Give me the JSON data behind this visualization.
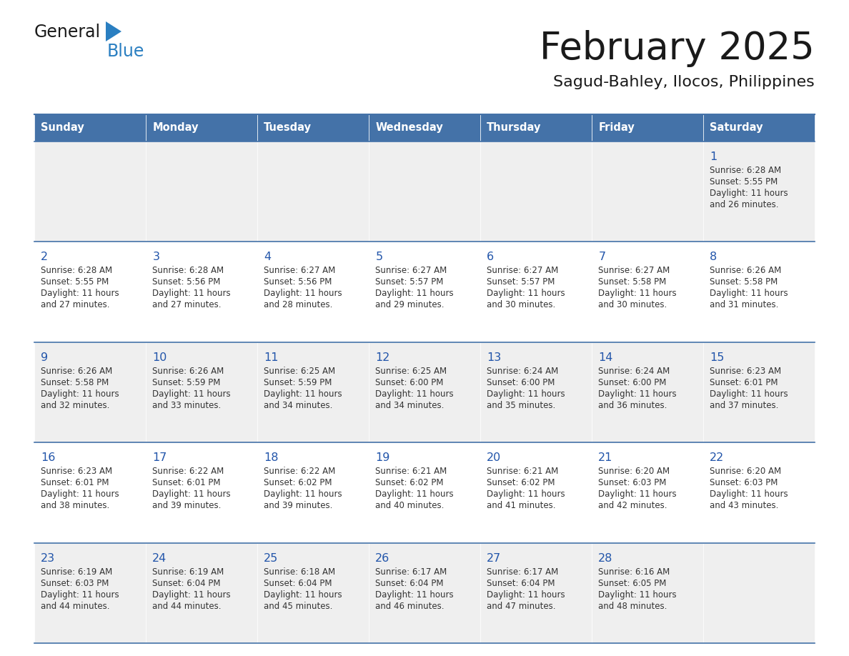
{
  "title": "February 2025",
  "subtitle": "Sagud-Bahley, Ilocos, Philippines",
  "header_bg_color": "#4472a8",
  "header_text_color": "#ffffff",
  "cell_bg_even": "#efefef",
  "cell_bg_odd": "#ffffff",
  "title_color": "#1a1a1a",
  "subtitle_color": "#1a1a1a",
  "day_num_color": "#2255aa",
  "cell_text_color": "#333333",
  "line_color": "#4472a8",
  "logo_general_color": "#1a1a1a",
  "logo_blue_color": "#2a7fc1",
  "day_headers": [
    "Sunday",
    "Monday",
    "Tuesday",
    "Wednesday",
    "Thursday",
    "Friday",
    "Saturday"
  ],
  "days": [
    {
      "day": 1,
      "col": 6,
      "row": 0,
      "sunrise": "6:28 AM",
      "sunset": "5:55 PM",
      "daylight": "11 hours",
      "daylight2": "and 26 minutes."
    },
    {
      "day": 2,
      "col": 0,
      "row": 1,
      "sunrise": "6:28 AM",
      "sunset": "5:55 PM",
      "daylight": "11 hours",
      "daylight2": "and 27 minutes."
    },
    {
      "day": 3,
      "col": 1,
      "row": 1,
      "sunrise": "6:28 AM",
      "sunset": "5:56 PM",
      "daylight": "11 hours",
      "daylight2": "and 27 minutes."
    },
    {
      "day": 4,
      "col": 2,
      "row": 1,
      "sunrise": "6:27 AM",
      "sunset": "5:56 PM",
      "daylight": "11 hours",
      "daylight2": "and 28 minutes."
    },
    {
      "day": 5,
      "col": 3,
      "row": 1,
      "sunrise": "6:27 AM",
      "sunset": "5:57 PM",
      "daylight": "11 hours",
      "daylight2": "and 29 minutes."
    },
    {
      "day": 6,
      "col": 4,
      "row": 1,
      "sunrise": "6:27 AM",
      "sunset": "5:57 PM",
      "daylight": "11 hours",
      "daylight2": "and 30 minutes."
    },
    {
      "day": 7,
      "col": 5,
      "row": 1,
      "sunrise": "6:27 AM",
      "sunset": "5:58 PM",
      "daylight": "11 hours",
      "daylight2": "and 30 minutes."
    },
    {
      "day": 8,
      "col": 6,
      "row": 1,
      "sunrise": "6:26 AM",
      "sunset": "5:58 PM",
      "daylight": "11 hours",
      "daylight2": "and 31 minutes."
    },
    {
      "day": 9,
      "col": 0,
      "row": 2,
      "sunrise": "6:26 AM",
      "sunset": "5:58 PM",
      "daylight": "11 hours",
      "daylight2": "and 32 minutes."
    },
    {
      "day": 10,
      "col": 1,
      "row": 2,
      "sunrise": "6:26 AM",
      "sunset": "5:59 PM",
      "daylight": "11 hours",
      "daylight2": "and 33 minutes."
    },
    {
      "day": 11,
      "col": 2,
      "row": 2,
      "sunrise": "6:25 AM",
      "sunset": "5:59 PM",
      "daylight": "11 hours",
      "daylight2": "and 34 minutes."
    },
    {
      "day": 12,
      "col": 3,
      "row": 2,
      "sunrise": "6:25 AM",
      "sunset": "6:00 PM",
      "daylight": "11 hours",
      "daylight2": "and 34 minutes."
    },
    {
      "day": 13,
      "col": 4,
      "row": 2,
      "sunrise": "6:24 AM",
      "sunset": "6:00 PM",
      "daylight": "11 hours",
      "daylight2": "and 35 minutes."
    },
    {
      "day": 14,
      "col": 5,
      "row": 2,
      "sunrise": "6:24 AM",
      "sunset": "6:00 PM",
      "daylight": "11 hours",
      "daylight2": "and 36 minutes."
    },
    {
      "day": 15,
      "col": 6,
      "row": 2,
      "sunrise": "6:23 AM",
      "sunset": "6:01 PM",
      "daylight": "11 hours",
      "daylight2": "and 37 minutes."
    },
    {
      "day": 16,
      "col": 0,
      "row": 3,
      "sunrise": "6:23 AM",
      "sunset": "6:01 PM",
      "daylight": "11 hours",
      "daylight2": "and 38 minutes."
    },
    {
      "day": 17,
      "col": 1,
      "row": 3,
      "sunrise": "6:22 AM",
      "sunset": "6:01 PM",
      "daylight": "11 hours",
      "daylight2": "and 39 minutes."
    },
    {
      "day": 18,
      "col": 2,
      "row": 3,
      "sunrise": "6:22 AM",
      "sunset": "6:02 PM",
      "daylight": "11 hours",
      "daylight2": "and 39 minutes."
    },
    {
      "day": 19,
      "col": 3,
      "row": 3,
      "sunrise": "6:21 AM",
      "sunset": "6:02 PM",
      "daylight": "11 hours",
      "daylight2": "and 40 minutes."
    },
    {
      "day": 20,
      "col": 4,
      "row": 3,
      "sunrise": "6:21 AM",
      "sunset": "6:02 PM",
      "daylight": "11 hours",
      "daylight2": "and 41 minutes."
    },
    {
      "day": 21,
      "col": 5,
      "row": 3,
      "sunrise": "6:20 AM",
      "sunset": "6:03 PM",
      "daylight": "11 hours",
      "daylight2": "and 42 minutes."
    },
    {
      "day": 22,
      "col": 6,
      "row": 3,
      "sunrise": "6:20 AM",
      "sunset": "6:03 PM",
      "daylight": "11 hours",
      "daylight2": "and 43 minutes."
    },
    {
      "day": 23,
      "col": 0,
      "row": 4,
      "sunrise": "6:19 AM",
      "sunset": "6:03 PM",
      "daylight": "11 hours",
      "daylight2": "and 44 minutes."
    },
    {
      "day": 24,
      "col": 1,
      "row": 4,
      "sunrise": "6:19 AM",
      "sunset": "6:04 PM",
      "daylight": "11 hours",
      "daylight2": "and 44 minutes."
    },
    {
      "day": 25,
      "col": 2,
      "row": 4,
      "sunrise": "6:18 AM",
      "sunset": "6:04 PM",
      "daylight": "11 hours",
      "daylight2": "and 45 minutes."
    },
    {
      "day": 26,
      "col": 3,
      "row": 4,
      "sunrise": "6:17 AM",
      "sunset": "6:04 PM",
      "daylight": "11 hours",
      "daylight2": "and 46 minutes."
    },
    {
      "day": 27,
      "col": 4,
      "row": 4,
      "sunrise": "6:17 AM",
      "sunset": "6:04 PM",
      "daylight": "11 hours",
      "daylight2": "and 47 minutes."
    },
    {
      "day": 28,
      "col": 5,
      "row": 4,
      "sunrise": "6:16 AM",
      "sunset": "6:05 PM",
      "daylight": "11 hours",
      "daylight2": "and 48 minutes."
    }
  ]
}
